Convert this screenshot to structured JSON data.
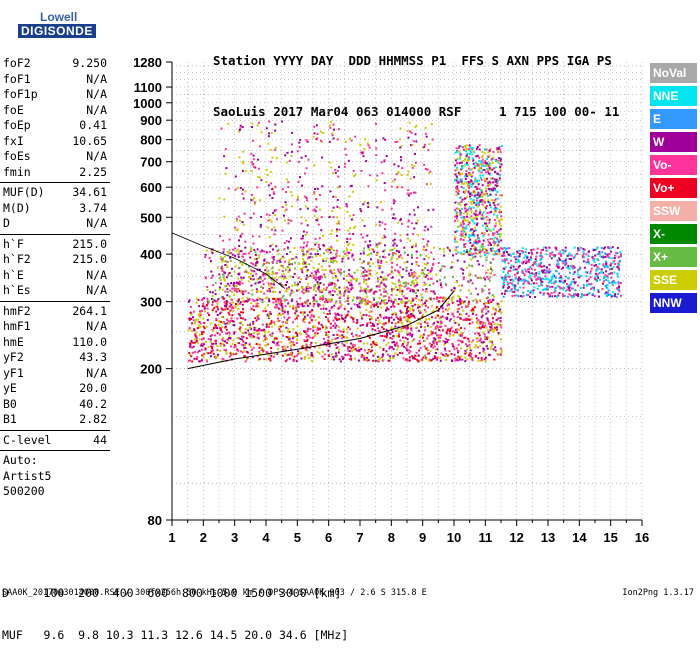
{
  "logo": {
    "line1": "Lowell",
    "line2": "DIGISONDE"
  },
  "header": {
    "line1": "Station YYYY DAY  DDD HHMMSS P1  FFS S AXN PPS IGA PS",
    "line2": "SaoLuis 2017 Mar04 063 014000 RSF     1 715 100 00- 11"
  },
  "params": {
    "group1": [
      {
        "k": "foF2",
        "v": "9.250"
      },
      {
        "k": "foF1",
        "v": "N/A"
      },
      {
        "k": "foF1p",
        "v": "N/A"
      },
      {
        "k": "foE",
        "v": "N/A"
      },
      {
        "k": "foEp",
        "v": "0.41"
      },
      {
        "k": "fxI",
        "v": "10.65"
      },
      {
        "k": "foEs",
        "v": "N/A"
      },
      {
        "k": "fmin",
        "v": "2.25"
      }
    ],
    "group2": [
      {
        "k": "MUF(D)",
        "v": "34.61"
      },
      {
        "k": "M(D)",
        "v": "3.74"
      },
      {
        "k": "D",
        "v": "N/A"
      }
    ],
    "group3": [
      {
        "k": "h`F",
        "v": "215.0"
      },
      {
        "k": "h`F2",
        "v": "215.0"
      },
      {
        "k": "h`E",
        "v": "N/A"
      },
      {
        "k": "h`Es",
        "v": "N/A"
      }
    ],
    "group4": [
      {
        "k": "hmF2",
        "v": "264.1"
      },
      {
        "k": "hmF1",
        "v": "N/A"
      },
      {
        "k": "hmE",
        "v": "110.0"
      },
      {
        "k": "yF2",
        "v": "43.3"
      },
      {
        "k": "yF1",
        "v": "N/A"
      },
      {
        "k": "yE",
        "v": "20.0"
      },
      {
        "k": "B0",
        "v": "40.2"
      },
      {
        "k": "B1",
        "v": "2.82"
      }
    ],
    "group5": [
      {
        "k": "C-level",
        "v": "44"
      }
    ],
    "auto": [
      "Auto:",
      "Artist5",
      "500200"
    ]
  },
  "legend": [
    {
      "label": "NoVal",
      "color": "#a8a8a8"
    },
    {
      "label": "NNE",
      "color": "#00e5ee"
    },
    {
      "label": "E",
      "color": "#3399ff"
    },
    {
      "label": "W",
      "color": "#a0009a"
    },
    {
      "label": "Vo-",
      "color": "#ff3399"
    },
    {
      "label": "Vo+",
      "color": "#ee0022"
    },
    {
      "label": "SSW",
      "color": "#f4b0a8"
    },
    {
      "label": "X-",
      "color": "#008800"
    },
    {
      "label": "X+",
      "color": "#66bb44"
    },
    {
      "label": "SSE",
      "color": "#cccc00"
    },
    {
      "label": "NNW",
      "color": "#1a1ad0"
    }
  ],
  "chart_data": {
    "type": "scatter",
    "title": "",
    "xlabel": "",
    "ylabel": "",
    "x_scale": "linear",
    "y_scale": "log",
    "xlim": [
      1,
      16
    ],
    "ylim": [
      80,
      1280
    ],
    "x_ticks": [
      1,
      2,
      3,
      4,
      5,
      6,
      7,
      8,
      9,
      10,
      11,
      12,
      13,
      14,
      15,
      16
    ],
    "y_ticks": [
      80,
      200,
      300,
      400,
      500,
      600,
      700,
      800,
      900,
      1000,
      1100,
      1280
    ],
    "grid": "dotted",
    "clusters": [
      {
        "x": [
          1.5,
          11.5
        ],
        "y": [
          210,
          310
        ],
        "colors": [
          "Vo-",
          "Vo+",
          "W",
          "SSE"
        ],
        "density": "high"
      },
      {
        "x": [
          2.0,
          11.3
        ],
        "y": [
          300,
          420
        ],
        "colors": [
          "SSE",
          "Vo-",
          "W",
          "X+"
        ],
        "density": "medium"
      },
      {
        "x": [
          11.5,
          15.3
        ],
        "y": [
          310,
          420
        ],
        "colors": [
          "NNE",
          "E",
          "W",
          "Vo-"
        ],
        "density": "medium"
      },
      {
        "x": [
          10.0,
          11.5
        ],
        "y": [
          400,
          780
        ],
        "colors": [
          "W",
          "Vo-",
          "SSE",
          "NNE"
        ],
        "density": "medium"
      },
      {
        "x": [
          2.8,
          9.3
        ],
        "y": [
          320,
          900
        ],
        "colors": [
          "W",
          "Vo-",
          "SSE"
        ],
        "density": "low"
      }
    ],
    "profile_curve": {
      "x": [
        1.5,
        3,
        5,
        7,
        8.5,
        9.5,
        10
      ],
      "y": [
        200,
        212,
        225,
        240,
        260,
        285,
        320
      ]
    },
    "upper_trace": {
      "x": [
        1.0,
        2,
        3,
        4,
        4.6
      ],
      "y": [
        455,
        420,
        390,
        355,
        325
      ]
    }
  },
  "footer": {
    "d_line": "D     100  200  400  600  800 1000 1500 3000 [km]",
    "muf_line": "MUF   9.6  9.8 10.3 11.3 12.6 14.5 20.0 34.6 [MHz]"
  },
  "bottom": {
    "info": "SAA0K_2017063014000.RSF / 300fx256h 50 kHs 5.0 km / DPS-4 SAA0K 903 / 2.6 S 315.8 E",
    "version": "Ion2Png 1.3.17"
  }
}
